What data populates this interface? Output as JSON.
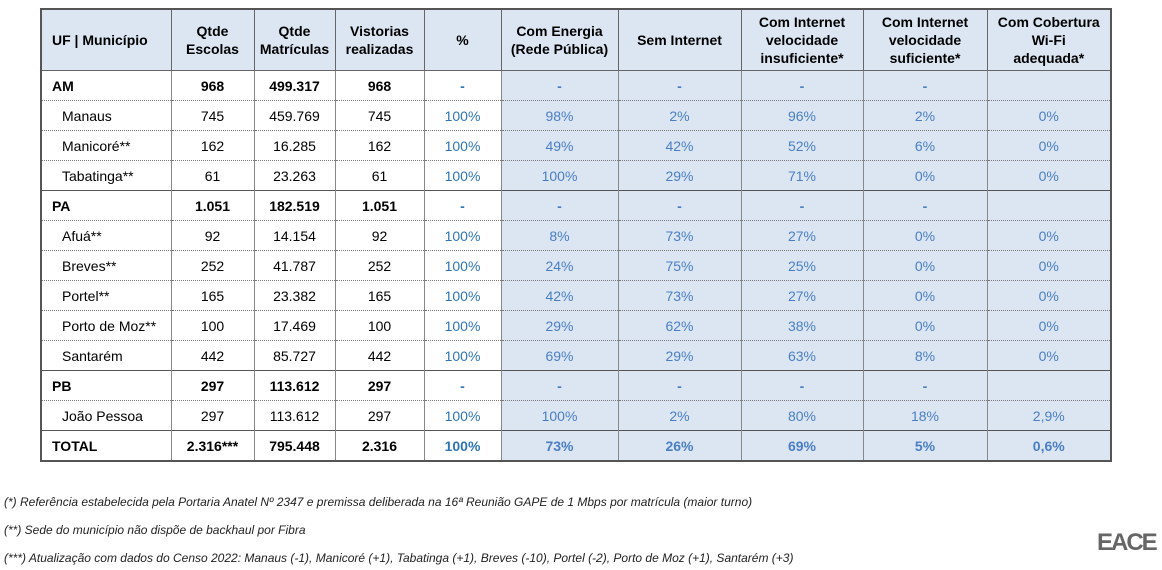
{
  "table": {
    "headers": [
      "UF | Município",
      "Qtde\nEscolas",
      "Qtde\nMatrículas",
      "Vistorias\nrealizadas",
      "%",
      "Com Energia\n(Rede Pública)",
      "Sem Internet",
      "Com Internet\nvelocidade\ninsuficiente*",
      "Com Internet\nvelocidade\nsuficiente*",
      "Com Cobertura\nWi-Fi\nadequada*"
    ],
    "groups": [
      {
        "uf": [
          "AM",
          "968",
          "499.317",
          "968",
          "-",
          "-",
          "-",
          "-",
          "-",
          ""
        ],
        "municipios": [
          [
            "Manaus",
            "745",
            "459.769",
            "745",
            "100%",
            "98%",
            "2%",
            "96%",
            "2%",
            "0%"
          ],
          [
            "Manicoré**",
            "162",
            "16.285",
            "162",
            "100%",
            "49%",
            "42%",
            "52%",
            "6%",
            "0%"
          ],
          [
            "Tabatinga**",
            "61",
            "23.263",
            "61",
            "100%",
            "100%",
            "29%",
            "71%",
            "0%",
            "0%"
          ]
        ]
      },
      {
        "uf": [
          "PA",
          "1.051",
          "182.519",
          "1.051",
          "-",
          "-",
          "-",
          "-",
          "-",
          ""
        ],
        "municipios": [
          [
            "Afuá**",
            "92",
            "14.154",
            "92",
            "100%",
            "8%",
            "73%",
            "27%",
            "0%",
            "0%"
          ],
          [
            "Breves**",
            "252",
            "41.787",
            "252",
            "100%",
            "24%",
            "75%",
            "25%",
            "0%",
            "0%"
          ],
          [
            "Portel**",
            "165",
            "23.382",
            "165",
            "100%",
            "42%",
            "73%",
            "27%",
            "0%",
            "0%"
          ],
          [
            "Porto de Moz**",
            "100",
            "17.469",
            "100",
            "100%",
            "29%",
            "62%",
            "38%",
            "0%",
            "0%"
          ],
          [
            "Santarém",
            "442",
            "85.727",
            "442",
            "100%",
            "69%",
            "29%",
            "63%",
            "8%",
            "0%"
          ]
        ]
      },
      {
        "uf": [
          "PB",
          "297",
          "113.612",
          "297",
          "-",
          "-",
          "-",
          "-",
          "-",
          ""
        ],
        "municipios": [
          [
            "João Pessoa",
            "297",
            "113.612",
            "297",
            "100%",
            "100%",
            "2%",
            "80%",
            "18%",
            "2,9%"
          ]
        ]
      }
    ],
    "total": [
      "TOTAL",
      "2.316***",
      "795.448",
      "2.316",
      "100%",
      "73%",
      "26%",
      "69%",
      "5%",
      "0,6%"
    ]
  },
  "footnotes": [
    "(*) Referência estabelecida pela Portaria Anatel Nº 2347 e premissa deliberada na 16ª Reunião GAPE de 1 Mbps por matrícula (maior turno)",
    "(**) Sede do município não dispõe de backhaul por Fibra",
    "(***) Atualização com dados do Censo 2022: Manaus (-1), Manicoré (+1), Tabatinga (+1), Breves (-10), Portel (-2), Porto de Moz (+1), Santarém (+3)"
  ],
  "logo": "EACE"
}
